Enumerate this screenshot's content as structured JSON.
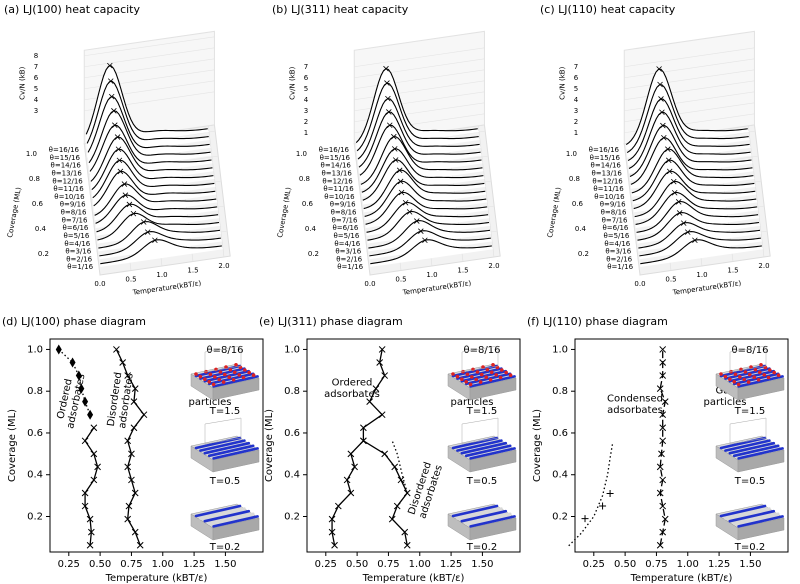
{
  "chart_data": [
    {
      "type": "waterfall3d",
      "title": "(a) LJ(100) heat capacity",
      "xlabel": "Temperature(kBT/ε)",
      "ylabel": "Coverage (ML)",
      "zlabel": "Cv/N (kB)",
      "categories": [
        "θ=1/16",
        "θ=2/16",
        "θ=3/16",
        "θ=4/16",
        "θ=5/16",
        "θ=6/16",
        "θ=7/16",
        "θ=8/16",
        "θ=9/16",
        "θ=10/16",
        "θ=11/16",
        "θ=12/16",
        "θ=13/16",
        "θ=14/16",
        "θ=15/16",
        "θ=16/16"
      ],
      "coverage": [
        0.0625,
        0.125,
        0.1875,
        0.25,
        0.3125,
        0.375,
        0.4375,
        0.5,
        0.5625,
        0.625,
        0.6875,
        0.75,
        0.8125,
        0.875,
        0.9375,
        1
      ],
      "peak_T": [
        0.9,
        0.8,
        0.75,
        0.6,
        0.55,
        0.5,
        0.5,
        0.45,
        0.45,
        0.45,
        0.45,
        0.42,
        0.42,
        0.4,
        0.4,
        0.4
      ],
      "peak_Cv": [
        1,
        1.2,
        1.5,
        1.8,
        2,
        2.2,
        2.5,
        3,
        3.3,
        3.6,
        4,
        4.4,
        5,
        5.6,
        6.3,
        7
      ],
      "xticks": [
        {
          "value": 0,
          "label": "0.0"
        },
        0.5,
        {
          "value": 1,
          "label": "1.0"
        },
        1.5,
        {
          "value": 2,
          "label": "2.0"
        }
      ],
      "yticks": [
        0.2,
        0.4,
        0.6,
        0.8,
        {
          "value": 1,
          "label": "1.0"
        }
      ],
      "zticks": [
        3,
        4,
        5,
        6,
        7,
        8
      ]
    },
    {
      "type": "waterfall3d",
      "title": "(b) LJ(311) heat capacity",
      "xlabel": "Temperature(kBT/ε)",
      "ylabel": "Coverage (ML)",
      "zlabel": "Cv/N (kB)",
      "categories": [
        "θ=1/16",
        "θ=2/16",
        "θ=3/16",
        "θ=4/16",
        "θ=5/16",
        "θ=6/16",
        "θ=7/16",
        "θ=8/16",
        "θ=9/16",
        "θ=10/16",
        "θ=11/16",
        "θ=12/16",
        "θ=13/16",
        "θ=14/16",
        "θ=15/16",
        "θ=16/16"
      ],
      "coverage": [
        0.0625,
        0.125,
        0.1875,
        0.25,
        0.3125,
        0.375,
        0.4375,
        0.5,
        0.5625,
        0.625,
        0.6875,
        0.75,
        0.8125,
        0.875,
        0.9375,
        1
      ],
      "peak_T": [
        0.9,
        0.85,
        0.8,
        0.7,
        0.65,
        0.6,
        0.6,
        0.6,
        0.55,
        0.55,
        0.55,
        0.5,
        0.5,
        0.5,
        0.5,
        0.5
      ],
      "peak_Cv": [
        1,
        1.2,
        1.5,
        1.8,
        2,
        2.3,
        2.6,
        2.9,
        3.2,
        3.5,
        3.9,
        4.3,
        4.8,
        5.3,
        6,
        6.6
      ],
      "xticks": [
        {
          "value": 0,
          "label": "0.0"
        },
        0.5,
        {
          "value": 1,
          "label": "1.0"
        },
        1.5,
        {
          "value": 2,
          "label": "2.0"
        }
      ],
      "yticks": [
        0.2,
        0.4,
        0.6,
        0.8,
        {
          "value": 1,
          "label": "1.0"
        }
      ],
      "zticks": [
        1,
        2,
        3,
        4,
        5,
        6,
        7
      ]
    },
    {
      "type": "waterfall3d",
      "title": "(c) LJ(110) heat capacity",
      "xlabel": "Temperature(kBT/ε)",
      "ylabel": "Coverage (ML)",
      "zlabel": "Cv/N (kB)",
      "categories": [
        "θ=1/16",
        "θ=2/16",
        "θ=3/16",
        "θ=4/16",
        "θ=5/16",
        "θ=6/16",
        "θ=7/16",
        "θ=8/16",
        "θ=9/16",
        "θ=10/16",
        "θ=11/16",
        "θ=12/16",
        "θ=13/16",
        "θ=14/16",
        "θ=15/16",
        "θ=16/16"
      ],
      "coverage": [
        0.0625,
        0.125,
        0.1875,
        0.25,
        0.3125,
        0.375,
        0.4375,
        0.5,
        0.5625,
        0.625,
        0.6875,
        0.75,
        0.8125,
        0.875,
        0.9375,
        1
      ],
      "peak_T": [
        0.9,
        0.8,
        0.75,
        0.7,
        0.7,
        0.65,
        0.65,
        0.6,
        0.6,
        0.6,
        0.55,
        0.55,
        0.55,
        0.55,
        0.55,
        0.55
      ],
      "peak_Cv": [
        1,
        1.2,
        1.4,
        1.7,
        2,
        2.2,
        2.5,
        2.8,
        3.1,
        3.4,
        3.8,
        4.2,
        4.7,
        5.2,
        5.8,
        6.5
      ],
      "xticks": [
        {
          "value": 0,
          "label": "0.0"
        },
        0.5,
        {
          "value": 1,
          "label": "1.0"
        },
        1.5,
        {
          "value": 2,
          "label": "2.0"
        }
      ],
      "yticks": [
        0.2,
        0.4,
        0.6,
        0.8,
        {
          "value": 1,
          "label": "1.0"
        }
      ],
      "zticks": [
        1,
        2,
        3,
        4,
        5,
        6,
        7
      ]
    },
    {
      "type": "phase",
      "title": "(d) LJ(100) phase diagram",
      "xlabel": "Temperature (kBT/ε)",
      "ylabel": "Coverage (ML)",
      "xlim": [
        0.1,
        1.8
      ],
      "ylim": [
        0.03,
        1.05
      ],
      "xticks": [
        0.25,
        {
          "value": 0.5,
          "label": "0.50"
        },
        0.75,
        {
          "value": 1,
          "label": "1.00"
        },
        1.25,
        {
          "value": 1.5,
          "label": "1.50"
        }
      ],
      "yticks": [
        0.2,
        0.4,
        0.6,
        0.8,
        {
          "value": 1,
          "label": "1.0"
        }
      ],
      "series": [
        {
          "style": "dotted",
          "marker": "diamond",
          "x": [
            0.17,
            0.28,
            0.33,
            0.35,
            0.38,
            0.42
          ],
          "y": [
            1,
            0.9375,
            0.875,
            0.8125,
            0.75,
            0.6875
          ]
        },
        {
          "style": "solid",
          "marker": "x",
          "x": [
            0.42,
            0.43,
            0.42,
            0.38,
            0.38,
            0.45,
            0.48,
            0.45,
            0.38,
            0.45
          ],
          "y": [
            0.0625,
            0.125,
            0.1875,
            0.25,
            0.3125,
            0.375,
            0.4375,
            0.5,
            0.5625,
            0.625
          ]
        },
        {
          "style": "solid",
          "marker": "x",
          "x": [
            0.82,
            0.78,
            0.72,
            0.73,
            0.78,
            0.75,
            0.72,
            0.75,
            0.72,
            0.77,
            0.85,
            0.77,
            0.78,
            0.72,
            0.68,
            0.63
          ],
          "y": [
            0.0625,
            0.125,
            0.1875,
            0.25,
            0.3125,
            0.375,
            0.4375,
            0.5,
            0.5625,
            0.625,
            0.6875,
            0.75,
            0.8125,
            0.875,
            0.9375,
            1
          ]
        }
      ],
      "annotations": [
        "Ordered adsorbates",
        "Disordered adsorbates",
        "Gas particles"
      ],
      "inset_labels": [
        "θ=8/16",
        "T=1.5",
        "T=0.5",
        "T=0.2"
      ]
    },
    {
      "type": "phase",
      "title": "(e) LJ(311) phase diagram",
      "xlabel": "Temperature (kBT/ε)",
      "ylabel": "Coverage (ML)",
      "xlim": [
        0.1,
        1.8
      ],
      "ylim": [
        0.03,
        1.05
      ],
      "xticks": [
        0.25,
        {
          "value": 0.5,
          "label": "0.50"
        },
        0.75,
        {
          "value": 1,
          "label": "1.00"
        },
        1.25,
        {
          "value": 1.5,
          "label": "1.50"
        }
      ],
      "yticks": [
        0.2,
        0.4,
        0.6,
        0.8,
        {
          "value": 1,
          "label": "1.0"
        }
      ],
      "series": [
        {
          "style": "solid",
          "marker": "x",
          "x": [
            0.32,
            0.3,
            0.3,
            0.35,
            0.45,
            0.42,
            0.48,
            0.45,
            0.55,
            0.55,
            0.7,
            0.6,
            0.65,
            0.72,
            0.68,
            0.7
          ],
          "y": [
            0.0625,
            0.125,
            0.1875,
            0.25,
            0.3125,
            0.375,
            0.4375,
            0.5,
            0.5625,
            0.625,
            0.6875,
            0.75,
            0.8125,
            0.875,
            0.9375,
            1
          ]
        },
        {
          "style": "solid",
          "marker": "x",
          "x": [
            0.9,
            0.88,
            0.78,
            0.82,
            0.9,
            0.85,
            0.8,
            0.72,
            0.55
          ],
          "y": [
            0.0625,
            0.125,
            0.1875,
            0.25,
            0.3125,
            0.375,
            0.4375,
            0.5,
            0.5625
          ]
        },
        {
          "style": "dotted",
          "marker": "none",
          "x": [
            0.9,
            0.86,
            0.82,
            0.78
          ],
          "y": [
            0.3125,
            0.4,
            0.5,
            0.5625
          ]
        }
      ],
      "annotations": [
        "Ordered adsorbates",
        "Gas particles",
        "Disordered adsorbates"
      ],
      "inset_labels": [
        "θ=8/16",
        "T=1.5",
        "T=0.5",
        "T=0.2"
      ]
    },
    {
      "type": "phase",
      "title": "(f) LJ(110) phase diagram",
      "xlabel": "Temperature (kBT/ε)",
      "ylabel": "Coverage (ML)",
      "xlim": [
        0.1,
        1.8
      ],
      "ylim": [
        0.03,
        1.05
      ],
      "xticks": [
        0.25,
        {
          "value": 0.5,
          "label": "0.50"
        },
        0.75,
        {
          "value": 1,
          "label": "1.00"
        },
        1.25,
        {
          "value": 1.5,
          "label": "1.50"
        }
      ],
      "yticks": [
        0.2,
        0.4,
        0.6,
        0.8,
        {
          "value": 1,
          "label": "1.0"
        }
      ],
      "series": [
        {
          "style": "dotted",
          "marker": "none",
          "x": [
            0.05,
            0.15,
            0.25,
            0.32,
            0.36,
            0.38,
            0.4
          ],
          "y": [
            0.06,
            0.12,
            0.2,
            0.3,
            0.4,
            0.48,
            0.55
          ]
        },
        {
          "style": "none",
          "marker": "plus",
          "x": [
            0.18,
            0.32,
            0.38
          ],
          "y": [
            0.19,
            0.25,
            0.31
          ]
        },
        {
          "style": "dashed",
          "marker": "x",
          "x": [
            0.78,
            0.8,
            0.82,
            0.8,
            0.78,
            0.8,
            0.78,
            0.79,
            0.8,
            0.8,
            0.8,
            0.82,
            0.78,
            0.8,
            0.8,
            0.8
          ],
          "y": [
            0.0625,
            0.125,
            0.1875,
            0.25,
            0.3125,
            0.375,
            0.4375,
            0.5,
            0.5625,
            0.625,
            0.6875,
            0.75,
            0.8125,
            0.875,
            0.9375,
            1
          ]
        }
      ],
      "annotations": [
        "Condensed adsorbates",
        "Gas particles"
      ],
      "inset_labels": [
        "θ=8/16",
        "T=1.5",
        "T=0.5",
        "T=0.2"
      ]
    }
  ]
}
